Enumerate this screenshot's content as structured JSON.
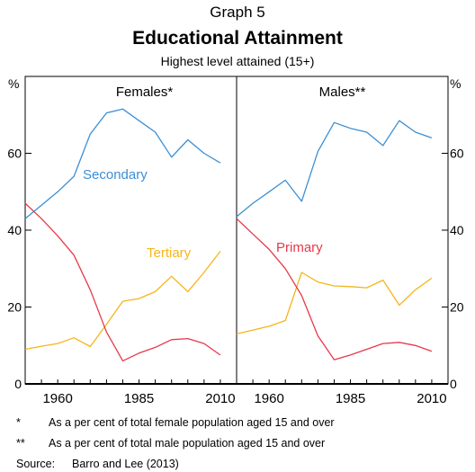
{
  "header": {
    "graph_label": "Graph 5",
    "title": "Educational Attainment",
    "subtitle": "Highest level attained (15+)"
  },
  "colors": {
    "secondary": "#3b8fd6",
    "primary": "#e8384a",
    "tertiary": "#f5b51c",
    "axis": "#000000"
  },
  "chart_data": {
    "type": "line",
    "y_unit_left": "%",
    "y_unit_right": "%",
    "ylim": [
      0,
      80
    ],
    "yticks": [
      0,
      20,
      40,
      60
    ],
    "xlim": [
      1950,
      2015
    ],
    "xticks": [
      1960,
      1985,
      2010
    ],
    "panels": [
      {
        "title": "Females*",
        "series": [
          {
            "name": "Secondary",
            "color_key": "secondary",
            "x": [
              1950,
              1955,
              1960,
              1965,
              1970,
              1975,
              1980,
              1985,
              1990,
              1995,
              2000,
              2005,
              2010
            ],
            "y": [
              43,
              46.5,
              50,
              54,
              65,
              70.5,
              71.5,
              68.5,
              65.5,
              59,
              63.5,
              60,
              57.5
            ]
          },
          {
            "name": "Tertiary",
            "color_key": "tertiary",
            "x": [
              1950,
              1955,
              1960,
              1965,
              1970,
              1975,
              1980,
              1985,
              1990,
              1995,
              2000,
              2005,
              2010
            ],
            "y": [
              9,
              9.8,
              10.5,
              12,
              9.7,
              15.5,
              21.5,
              22.2,
              24,
              28,
              24,
              29,
              34.5
            ]
          },
          {
            "name": "",
            "color_key": "primary",
            "x": [
              1950,
              1955,
              1960,
              1965,
              1970,
              1975,
              1980,
              1985,
              1990,
              1995,
              2000,
              2005,
              2010
            ],
            "y": [
              47,
              43,
              38.5,
              33.5,
              24.5,
              13.5,
              6,
              8,
              9.5,
              11.5,
              11.8,
              10.5,
              7.5
            ]
          }
        ]
      },
      {
        "title": "Males**",
        "series": [
          {
            "name": "",
            "color_key": "secondary",
            "x": [
              1950,
              1955,
              1960,
              1965,
              1970,
              1975,
              1980,
              1985,
              1990,
              1995,
              2000,
              2005,
              2010
            ],
            "y": [
              43.5,
              47,
              50,
              53,
              47.5,
              60.5,
              68,
              66.5,
              65.5,
              62,
              68.5,
              65.5,
              64
            ]
          },
          {
            "name": "",
            "color_key": "tertiary",
            "x": [
              1950,
              1955,
              1960,
              1965,
              1970,
              1975,
              1980,
              1985,
              1990,
              1995,
              2000,
              2005,
              2010
            ],
            "y": [
              13,
              14,
              15,
              16.5,
              29,
              26.5,
              25.5,
              25.3,
              25,
              27,
              20.5,
              24.5,
              27.5
            ]
          },
          {
            "name": "Primary",
            "color_key": "primary",
            "x": [
              1950,
              1955,
              1960,
              1965,
              1970,
              1975,
              1980,
              1985,
              1990,
              1995,
              2000,
              2005,
              2010
            ],
            "y": [
              43,
              39,
              35,
              30,
              23,
              12.5,
              6.3,
              7.5,
              9,
              10.5,
              10.8,
              10,
              8.5
            ]
          }
        ]
      }
    ]
  },
  "notes": [
    {
      "mark": "*",
      "text": "As a per cent of total female population aged 15 and over"
    },
    {
      "mark": "**",
      "text": "As a per cent of total male population aged 15 and over"
    }
  ],
  "source": {
    "label": "Source:",
    "text": "Barro and Lee (2013)"
  }
}
